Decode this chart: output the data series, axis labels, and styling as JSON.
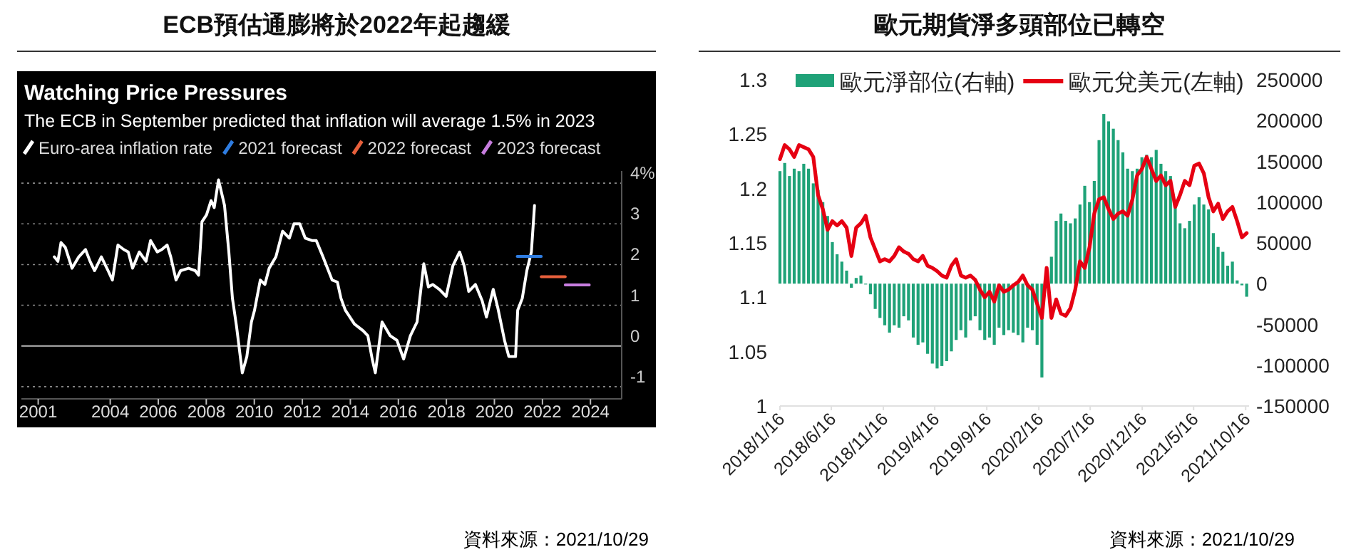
{
  "chart_data": [
    {
      "type": "line",
      "title": "ECB預估通膨將於2022年起趨緩",
      "subtitle": "Watching Price Pressures",
      "annotations": [
        "The ECB in September predicted that inflation will average 1.5% in 2023",
        "資料來源：2021/10/29"
      ],
      "xlim": [
        2000.3,
        2025.3
      ],
      "xticks": [
        2001,
        2004,
        2006,
        2008,
        2010,
        2012,
        2014,
        2016,
        2018,
        2020,
        2022,
        2024
      ],
      "ylim": [
        -1.3,
        4.3
      ],
      "yticks": [
        -1,
        0,
        1,
        2,
        3,
        {
          "value": 4,
          "label": "4%"
        }
      ],
      "grid": "y",
      "legend": "top left",
      "series": [
        {
          "name": "Euro-area inflation rate",
          "color": "#ffffff",
          "x": [
            2001.67,
            2001.82,
            2001.95,
            2002.13,
            2002.41,
            2002.69,
            2002.97,
            2003.16,
            2003.35,
            2003.63,
            2003.91,
            2004.09,
            2004.32,
            2004.56,
            2004.75,
            2004.93,
            2005.21,
            2005.49,
            2005.68,
            2005.96,
            2006.15,
            2006.37,
            2006.52,
            2006.74,
            2006.93,
            2007.26,
            2007.54,
            2007.68,
            2007.82,
            2008.01,
            2008.2,
            2008.33,
            2008.51,
            2008.76,
            2008.94,
            2009.09,
            2009.26,
            2009.5,
            2009.69,
            2009.88,
            2010.01,
            2010.25,
            2010.44,
            2010.62,
            2010.9,
            2011.18,
            2011.46,
            2011.65,
            2011.89,
            2012.12,
            2012.4,
            2012.58,
            2012.86,
            2013.24,
            2013.46,
            2013.61,
            2013.79,
            2014.17,
            2014.54,
            2014.73,
            2014.91,
            2015.04,
            2015.32,
            2015.66,
            2015.94,
            2016.22,
            2016.5,
            2016.78,
            2017.06,
            2017.25,
            2017.43,
            2017.71,
            2017.99,
            2018.27,
            2018.55,
            2018.74,
            2018.93,
            2019.21,
            2019.49,
            2019.67,
            2019.95,
            2020.14,
            2020.42,
            2020.6,
            2020.88,
            2020.97,
            2021.16,
            2021.35,
            2021.54,
            2021.67
          ],
          "values": [
            2.19,
            2.08,
            2.54,
            2.42,
            1.91,
            2.19,
            2.37,
            2.08,
            1.85,
            2.19,
            1.85,
            1.62,
            2.48,
            2.37,
            2.31,
            1.91,
            2.31,
            2.08,
            2.59,
            2.31,
            2.37,
            2.48,
            2.19,
            1.62,
            1.85,
            1.91,
            1.85,
            1.74,
            3.05,
            3.22,
            3.57,
            3.4,
            4.08,
            3.45,
            2.31,
            1.17,
            0.48,
            -0.66,
            -0.26,
            0.59,
            0.88,
            1.62,
            1.51,
            1.91,
            2.19,
            2.82,
            2.65,
            3.0,
            3.0,
            2.65,
            2.59,
            2.59,
            2.19,
            1.62,
            1.57,
            1.17,
            0.88,
            0.54,
            0.37,
            0.25,
            -0.32,
            -0.66,
            0.59,
            0.25,
            0.14,
            -0.32,
            0.25,
            0.59,
            2.02,
            1.45,
            1.51,
            1.39,
            1.22,
            1.97,
            2.31,
            1.97,
            1.34,
            1.51,
            1.11,
            0.71,
            1.39,
            0.94,
            0.14,
            -0.26,
            -0.26,
            0.88,
            1.17,
            1.85,
            2.31,
            3.45
          ]
        },
        {
          "name": "2021 forecast",
          "color": "#2f7de1",
          "x": [
            2020.95,
            2021.95
          ],
          "values": [
            2.2,
            2.2
          ]
        },
        {
          "name": "2022 forecast",
          "color": "#e8603c",
          "x": [
            2021.95,
            2022.95
          ],
          "values": [
            1.7,
            1.7
          ]
        },
        {
          "name": "2023 forecast",
          "color": "#c77ddf",
          "x": [
            2022.95,
            2023.95
          ],
          "values": [
            1.5,
            1.5
          ]
        }
      ]
    },
    {
      "type": "bar",
      "title": "歐元期貨淨多頭部位已轉空",
      "annotations": [
        "資料來源：2021/10/29"
      ],
      "legend": "top",
      "x": [
        "2018-01-16",
        "2018-01-30",
        "2018-02-13",
        "2018-02-27",
        "2018-03-13",
        "2018-03-27",
        "2018-04-10",
        "2018-04-24",
        "2018-05-08",
        "2018-05-22",
        "2018-06-05",
        "2018-06-19",
        "2018-07-03",
        "2018-07-17",
        "2018-07-31",
        "2018-08-14",
        "2018-08-28",
        "2018-09-11",
        "2018-09-25",
        "2018-10-09",
        "2018-10-23",
        "2018-11-06",
        "2018-11-20",
        "2018-12-04",
        "2018-12-18",
        "2019-01-01",
        "2019-01-15",
        "2019-01-29",
        "2019-02-12",
        "2019-02-26",
        "2019-03-12",
        "2019-03-26",
        "2019-04-09",
        "2019-04-23",
        "2019-05-07",
        "2019-05-21",
        "2019-06-04",
        "2019-06-18",
        "2019-07-02",
        "2019-07-16",
        "2019-07-30",
        "2019-08-13",
        "2019-08-27",
        "2019-09-10",
        "2019-09-24",
        "2019-10-08",
        "2019-10-22",
        "2019-11-05",
        "2019-11-19",
        "2019-12-03",
        "2019-12-17",
        "2019-12-31",
        "2020-01-14",
        "2020-01-28",
        "2020-02-11",
        "2020-02-25",
        "2020-03-10",
        "2020-03-24",
        "2020-04-07",
        "2020-04-21",
        "2020-05-05",
        "2020-05-19",
        "2020-06-02",
        "2020-06-16",
        "2020-06-30",
        "2020-07-14",
        "2020-07-28",
        "2020-08-11",
        "2020-08-25",
        "2020-09-08",
        "2020-09-22",
        "2020-10-06",
        "2020-10-20",
        "2020-11-03",
        "2020-11-17",
        "2020-12-01",
        "2020-12-15",
        "2020-12-29",
        "2021-01-12",
        "2021-01-26",
        "2021-02-09",
        "2021-02-23",
        "2021-03-09",
        "2021-03-23",
        "2021-04-06",
        "2021-04-20",
        "2021-05-04",
        "2021-05-18",
        "2021-06-01",
        "2021-06-15",
        "2021-06-29",
        "2021-07-13",
        "2021-07-27",
        "2021-08-10",
        "2021-08-24",
        "2021-09-07",
        "2021-09-21",
        "2021-10-05",
        "2021-10-19"
      ],
      "xlim": [
        "2018-01-16",
        "2021-10-26"
      ],
      "xticks": [
        {
          "value": "2018-01-16",
          "label": "2018/1/16"
        },
        {
          "value": "2018-06-16",
          "label": "2018/6/16"
        },
        {
          "value": "2018-11-16",
          "label": "2018/11/16"
        },
        {
          "value": "2019-04-16",
          "label": "2019/4/16"
        },
        {
          "value": "2019-09-16",
          "label": "2019/9/16"
        },
        {
          "value": "2020-02-16",
          "label": "2020/2/16"
        },
        {
          "value": "2020-07-16",
          "label": "2020/7/16"
        },
        {
          "value": "2020-12-16",
          "label": "2020/12/16"
        },
        {
          "value": "2021-05-16",
          "label": "2021/5/16"
        },
        {
          "value": "2021-10-16",
          "label": "2021/10/16"
        }
      ],
      "ylim": [
        1,
        1.3
      ],
      "yticks": [
        1,
        1.05,
        1.1,
        1.15,
        1.2,
        1.25,
        1.3
      ],
      "y2lim": [
        -150000,
        250000
      ],
      "y2ticks": [
        -150000,
        -100000,
        -50000,
        0,
        50000,
        100000,
        150000,
        200000,
        250000
      ],
      "series": [
        {
          "name": "歐元淨部位(右軸)",
          "axis": "y2",
          "color": "#1fa278",
          "values": [
            138000,
            148000,
            132000,
            141000,
            138000,
            147000,
            141000,
            123000,
            115000,
            100000,
            83000,
            51000,
            36000,
            27000,
            16000,
            -5000,
            7000,
            10000,
            -1000,
            -13000,
            -31000,
            -42000,
            -51000,
            -60000,
            -51000,
            -54000,
            -40000,
            -45000,
            -66000,
            -75000,
            -72000,
            -86000,
            -98000,
            -104000,
            -101000,
            -95000,
            -83000,
            -69000,
            -57000,
            -66000,
            -45000,
            -40000,
            -57000,
            -69000,
            -66000,
            -75000,
            -54000,
            -63000,
            -57000,
            -60000,
            -63000,
            -72000,
            -54000,
            -57000,
            -75000,
            -115000,
            null,
            33000,
            77000,
            86000,
            77000,
            74000,
            80000,
            97000,
            120000,
            100000,
            126000,
            176000,
            208000,
            199000,
            190000,
            176000,
            161000,
            141000,
            138000,
            141000,
            155000,
            158000,
            155000,
            164000,
            147000,
            138000,
            132000,
            103000,
            74000,
            68000,
            77000,
            97000,
            106000,
            97000,
            91000,
            62000,
            45000,
            39000,
            22000,
            27000,
            4000,
            -2000,
            -16000
          ]
        },
        {
          "name": "歐元兌美元(左軸)",
          "type": "line",
          "axis": "y",
          "color": "#e60012",
          "values": [
            1.227,
            1.24,
            1.236,
            1.229,
            1.24,
            1.238,
            1.236,
            1.229,
            1.194,
            1.181,
            1.162,
            1.17,
            1.166,
            1.17,
            1.164,
            1.138,
            1.164,
            1.168,
            1.175,
            1.155,
            1.144,
            1.133,
            1.135,
            1.133,
            1.138,
            1.146,
            1.142,
            1.14,
            1.135,
            1.133,
            1.138,
            1.129,
            1.127,
            1.124,
            1.12,
            1.118,
            1.129,
            1.135,
            1.12,
            1.118,
            1.12,
            1.116,
            1.107,
            1.1,
            1.105,
            1.096,
            1.111,
            1.105,
            1.107,
            1.111,
            1.114,
            1.12,
            1.111,
            1.107,
            1.094,
            1.081,
            1.127,
            1.081,
            1.098,
            1.085,
            1.083,
            1.09,
            1.107,
            1.133,
            1.127,
            1.146,
            1.177,
            1.19,
            1.192,
            1.181,
            1.172,
            1.177,
            1.179,
            1.175,
            1.19,
            1.212,
            1.218,
            1.229,
            1.218,
            1.207,
            1.212,
            1.203,
            1.207,
            1.183,
            1.194,
            1.207,
            1.203,
            1.221,
            1.223,
            1.214,
            1.192,
            1.179,
            1.186,
            1.172,
            1.179,
            1.183,
            1.17,
            1.155,
            1.159
          ]
        }
      ]
    }
  ]
}
